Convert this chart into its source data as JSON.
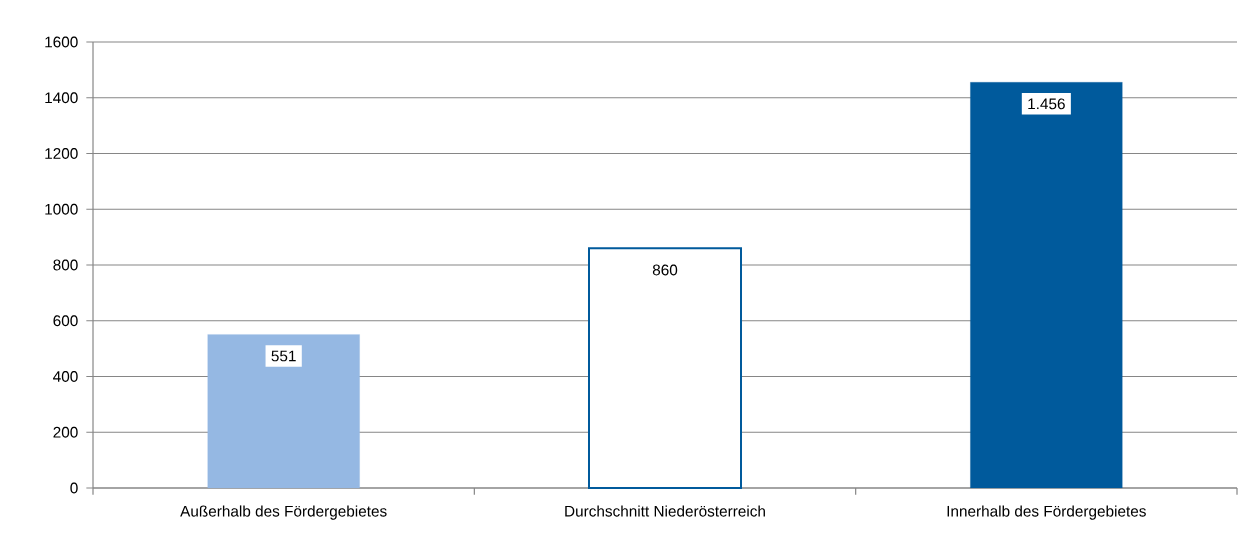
{
  "chart_data": {
    "type": "bar",
    "categories": [
      "Außerhalb des Fördergebietes",
      "Durchschnitt Niederösterreich",
      "Innerhalb des Fördergebietes"
    ],
    "values": [
      551,
      860,
      1456
    ],
    "value_labels": [
      "551",
      "860",
      "1.456"
    ],
    "colors": [
      "#95b8e3",
      "#ffffff",
      "#005a9c"
    ],
    "ylim": [
      0,
      1600
    ],
    "yticks": [
      0,
      200,
      400,
      600,
      800,
      1000,
      1200,
      1400,
      1600
    ],
    "grid": "y"
  }
}
